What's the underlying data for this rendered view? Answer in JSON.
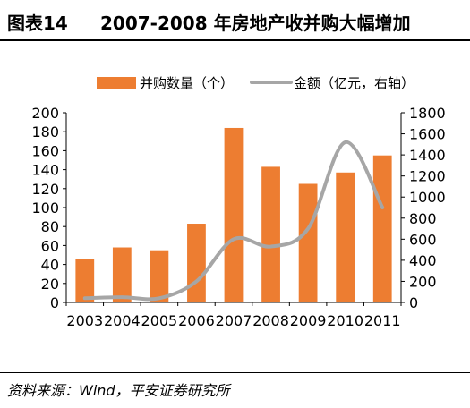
{
  "header": {
    "label": "图表14",
    "title": "2007-2008 年房地产收并购大幅增加"
  },
  "source": "资料来源：Wind，平安证券研究所",
  "colors": {
    "bar": "#ED7D31",
    "line": "#A6A6A6",
    "axis": "#000000",
    "text": "#000000"
  },
  "chart_data": {
    "type": "bar",
    "categories": [
      "2003",
      "2004",
      "2005",
      "2006",
      "2007",
      "2008",
      "2009",
      "2010",
      "2011"
    ],
    "series": [
      {
        "name": "并购数量（个）",
        "type": "bar",
        "axis": "left",
        "values": [
          46,
          58,
          55,
          83,
          184,
          143,
          125,
          137,
          155
        ]
      },
      {
        "name": "金额（亿元，右轴）",
        "type": "line",
        "smooth": true,
        "axis": "right",
        "values": [
          40,
          50,
          40,
          200,
          600,
          530,
          700,
          1520,
          900
        ]
      }
    ],
    "title": "",
    "xlabel": "",
    "ylabel": "",
    "y2label": "",
    "ylim": [
      0,
      200
    ],
    "yticks": [
      0,
      20,
      40,
      60,
      80,
      100,
      120,
      140,
      160,
      180,
      200
    ],
    "y2lim": [
      0,
      1800
    ],
    "y2ticks": [
      0,
      200,
      400,
      600,
      800,
      1000,
      1200,
      1400,
      1600,
      1800
    ],
    "grid": false,
    "legend": "top"
  }
}
